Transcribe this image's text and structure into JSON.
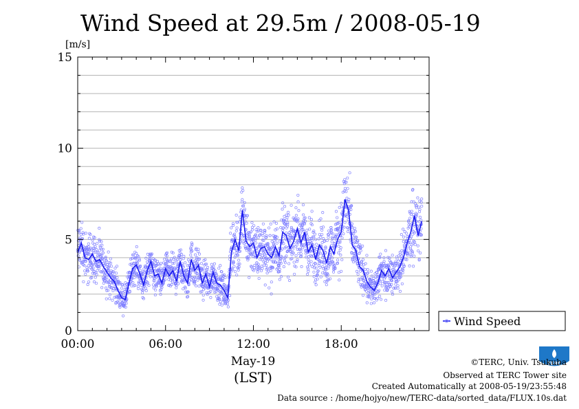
{
  "chart_data": {
    "type": "scatter",
    "title": "Wind Speed at 29.5m / 2008-05-19",
    "ylabel": "[m/s]",
    "xlabel": "May-19",
    "xlabel2": "(LST)",
    "ylim": [
      0,
      15
    ],
    "xlim": [
      0,
      24
    ],
    "yticks": [
      0,
      5,
      10,
      15
    ],
    "xticks": [
      {
        "v": 0,
        "label": "00:00"
      },
      {
        "v": 6,
        "label": "06:00"
      },
      {
        "v": 12,
        "label": "12:00"
      },
      {
        "v": 18,
        "label": "18:00"
      }
    ],
    "grid": true,
    "legend_position": "bottom-right outside",
    "series": [
      {
        "name": "Wind Speed",
        "line_color": "#1a1aee",
        "point_color": "#8080ff",
        "x": [
          0.0,
          0.25,
          0.5,
          0.75,
          1.0,
          1.25,
          1.5,
          1.75,
          2.0,
          2.25,
          2.5,
          2.75,
          3.0,
          3.25,
          3.5,
          3.75,
          4.0,
          4.25,
          4.5,
          4.75,
          5.0,
          5.25,
          5.5,
          5.75,
          6.0,
          6.25,
          6.5,
          6.75,
          7.0,
          7.25,
          7.5,
          7.75,
          8.0,
          8.25,
          8.5,
          8.75,
          9.0,
          9.25,
          9.5,
          9.75,
          10.0,
          10.25,
          10.5,
          10.75,
          11.0,
          11.25,
          11.5,
          11.75,
          12.0,
          12.25,
          12.5,
          12.75,
          13.0,
          13.25,
          13.5,
          13.75,
          14.0,
          14.25,
          14.5,
          14.75,
          15.0,
          15.25,
          15.5,
          15.75,
          16.0,
          16.25,
          16.5,
          16.75,
          17.0,
          17.25,
          17.5,
          17.75,
          18.0,
          18.25,
          18.5,
          18.75,
          19.0,
          19.25,
          19.5,
          19.75,
          20.0,
          20.25,
          20.5,
          20.75,
          21.0,
          21.25,
          21.5,
          21.75,
          22.0,
          22.25,
          22.5,
          22.75,
          23.0,
          23.25,
          23.5
        ],
        "values": [
          4.3,
          4.8,
          4.0,
          3.9,
          4.2,
          3.8,
          3.9,
          3.5,
          3.2,
          2.9,
          2.7,
          2.2,
          1.8,
          1.7,
          2.6,
          3.4,
          3.6,
          3.1,
          2.5,
          3.3,
          3.8,
          3.0,
          3.1,
          2.6,
          3.4,
          3.0,
          3.3,
          2.7,
          3.8,
          3.0,
          2.6,
          3.9,
          3.3,
          3.6,
          2.6,
          3.1,
          2.4,
          3.2,
          2.6,
          2.5,
          2.2,
          1.8,
          4.3,
          5.0,
          4.4,
          6.6,
          4.9,
          4.6,
          4.8,
          4.0,
          4.5,
          4.6,
          4.2,
          4.0,
          4.6,
          4.1,
          5.4,
          5.2,
          4.5,
          4.9,
          5.6,
          4.8,
          5.4,
          4.3,
          4.7,
          3.9,
          4.7,
          4.4,
          3.7,
          4.6,
          4.2,
          5.0,
          5.4,
          7.2,
          6.6,
          4.7,
          4.4,
          3.5,
          3.3,
          2.7,
          2.4,
          2.2,
          2.6,
          3.3,
          3.0,
          3.4,
          2.9,
          3.2,
          3.5,
          4.0,
          4.8,
          5.4,
          6.3,
          5.2,
          6.0
        ],
        "scatter_spread": [
          1.2,
          1.2,
          1.1,
          1.1,
          1.1,
          1.0,
          1.0,
          0.9,
          0.9,
          0.8,
          0.8,
          0.7,
          0.6,
          0.6,
          0.7,
          0.8,
          0.8,
          0.8,
          0.7,
          0.8,
          0.8,
          0.7,
          0.7,
          0.7,
          0.8,
          0.7,
          0.8,
          0.7,
          0.9,
          0.8,
          0.8,
          0.9,
          0.8,
          0.9,
          0.8,
          0.8,
          0.7,
          0.8,
          0.7,
          0.7,
          0.7,
          0.6,
          1.2,
          1.4,
          1.3,
          1.6,
          1.4,
          1.3,
          1.3,
          1.2,
          1.3,
          1.3,
          1.2,
          1.2,
          1.3,
          1.2,
          1.4,
          1.4,
          1.3,
          1.3,
          1.4,
          1.3,
          1.4,
          1.3,
          1.3,
          1.2,
          1.3,
          1.3,
          1.2,
          1.3,
          1.2,
          1.4,
          1.4,
          1.7,
          1.6,
          1.3,
          1.2,
          1.0,
          1.0,
          0.9,
          0.8,
          0.8,
          0.8,
          0.9,
          0.9,
          0.9,
          0.8,
          0.9,
          1.0,
          1.1,
          1.3,
          1.4,
          1.6,
          1.5,
          1.6
        ]
      }
    ]
  },
  "legend": {
    "label": "Wind Speed"
  },
  "credits": {
    "line1": "©TERC, Univ. Tsukuba",
    "line2": "Observed at TERC Tower site",
    "line3": "Created Automatically at 2008-05-19/23:55:48",
    "line4": "Data source : /home/hojyo/new/TERC-data/sorted_data/FLUX.10s.dat"
  },
  "logo": {
    "text": "TERC"
  }
}
